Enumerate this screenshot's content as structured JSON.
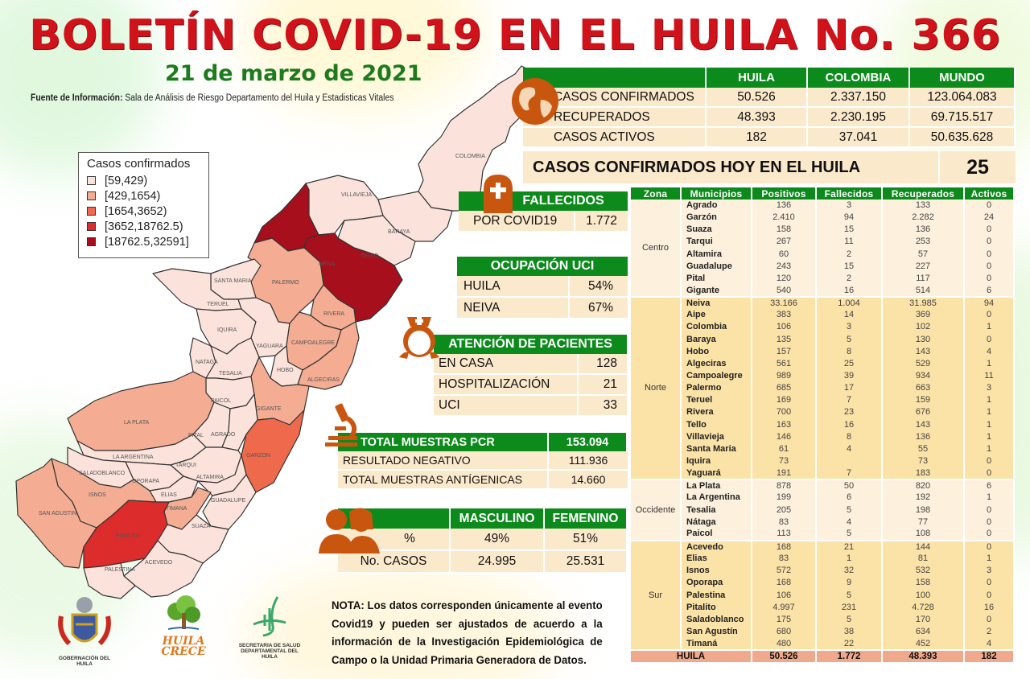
{
  "header": {
    "title": "BOLETÍN COVID-19 EN EL HUILA No. 366",
    "date": "21 de marzo de 2021",
    "source_label": "Fuente de Información:",
    "source_text": " Sala de Análisis de Riesgo Departamento del Huila y Estadisticas Vitales"
  },
  "legend": {
    "title": "Casos confirmados",
    "items": [
      {
        "label": "[59,429)",
        "color": "#fbe3dc"
      },
      {
        "label": "[429,1654)",
        "color": "#f4ad93"
      },
      {
        "label": "[1654,3652)",
        "color": "#ef6a4c"
      },
      {
        "label": "[3652,18762.5)",
        "color": "#dd2c2c"
      },
      {
        "label": "[18762.5,32591]",
        "color": "#a80f1c"
      }
    ]
  },
  "map": {
    "labels": [
      "COLOMBIA",
      "VILLAVIEJA",
      "BARAYA",
      "TELLO",
      "NEIVA",
      "PALERMO",
      "SANTA MARIA",
      "TERUEL",
      "IQUIRA",
      "YAGUARA",
      "RIVERA",
      "CAMPOALEGRE",
      "HOBO",
      "NATAGA",
      "TESALIA",
      "ALGECIRAS",
      "PAICOL",
      "GIGANTE",
      "LA PLATA",
      "PITAL",
      "AGRADO",
      "LA ARGENTINA",
      "GARZON",
      "TARQUI",
      "SALADOBLANCO",
      "OPORAPA",
      "ALTAMIRA",
      "ISNOS",
      "ELIAS",
      "TIMANA",
      "GUADALUPE",
      "SAN AGUSTIN",
      "PITALITO",
      "SUAZA",
      "ACEVEDO",
      "PALESTINA"
    ]
  },
  "summary": {
    "columns": [
      "",
      "HUILA",
      "COLOMBIA",
      "MUNDO"
    ],
    "rows": [
      {
        "label": "CASOS CONFIRMADOS",
        "huila": "50.526",
        "colombia": "2.337.150",
        "mundo": "123.064.083"
      },
      {
        "label": "RECUPERADOS",
        "huila": "48.393",
        "colombia": "2.230.195",
        "mundo": "69.715.517"
      },
      {
        "label": "CASOS ACTIVOS",
        "huila": "182",
        "colombia": "37.041",
        "mundo": "50.635.628"
      }
    ],
    "today_label": "CASOS CONFIRMADOS  HOY EN EL HUILA",
    "today_value": "25"
  },
  "fallecidos": {
    "title": "FALLECIDOS",
    "label": "POR COVID19",
    "value": "1.772"
  },
  "uci": {
    "title": "OCUPACIÓN  UCI",
    "rows": [
      {
        "label": "HUILA",
        "value": "54%"
      },
      {
        "label": "NEIVA",
        "value": "67%"
      }
    ]
  },
  "atencion": {
    "title": "ATENCIÓN DE PACIENTES",
    "rows": [
      {
        "label": "EN CASA",
        "value": "128"
      },
      {
        "label": "HOSPITALIZACIÓN",
        "value": "21"
      },
      {
        "label": "UCI",
        "value": "33"
      }
    ]
  },
  "muestras": {
    "title": "TOTAL MUESTRAS PCR",
    "total": "153.094",
    "rows": [
      {
        "label": "RESULTADO  NEGATIVO",
        "value": "111.936"
      },
      {
        "label": "TOTAL  MUESTRAS  ANTÍGENICAS",
        "value": "14.660"
      }
    ]
  },
  "sexo": {
    "columns": [
      "",
      "MASCULINO",
      "FEMENINO"
    ],
    "rows": [
      {
        "label": "%",
        "masculino": "49%",
        "femenino": "51%"
      },
      {
        "label": "No. CASOS",
        "masculino": "24.995",
        "femenino": "25.531"
      }
    ]
  },
  "nota": {
    "lead": "NOTA:",
    "text": " Los datos corresponden únicamente al evento Covid19 y pueden ser ajustados de acuerdo a la información de la Investigación Epidemiológica de Campo o la Unidad Primaria Generadora de Datos."
  },
  "municipios": {
    "columns": [
      "Zona",
      "Municipios",
      "Positivos",
      "Fallecidos",
      "Recuperados",
      "Activos"
    ],
    "zonas": [
      {
        "zona": "Centro",
        "rows": [
          [
            "Agrado",
            "136",
            "3",
            "133",
            "0"
          ],
          [
            "Garzón",
            "2.410",
            "94",
            "2.282",
            "24"
          ],
          [
            "Suaza",
            "158",
            "15",
            "136",
            "0"
          ],
          [
            "Tarqui",
            "267",
            "11",
            "253",
            "0"
          ],
          [
            "Altamira",
            "60",
            "2",
            "57",
            "0"
          ],
          [
            "Guadalupe",
            "243",
            "15",
            "227",
            "0"
          ],
          [
            "Pital",
            "120",
            "2",
            "117",
            "0"
          ],
          [
            "Gigante",
            "540",
            "16",
            "514",
            "6"
          ]
        ]
      },
      {
        "zona": "Norte",
        "rows": [
          [
            "Neiva",
            "33.166",
            "1.004",
            "31.985",
            "94"
          ],
          [
            "Aipe",
            "383",
            "14",
            "369",
            "0"
          ],
          [
            "Colombia",
            "106",
            "3",
            "102",
            "1"
          ],
          [
            "Baraya",
            "135",
            "5",
            "130",
            "0"
          ],
          [
            "Hobo",
            "157",
            "8",
            "143",
            "4"
          ],
          [
            "Algeciras",
            "561",
            "25",
            "529",
            "1"
          ],
          [
            "Campoalegre",
            "989",
            "39",
            "934",
            "11"
          ],
          [
            "Palermo",
            "685",
            "17",
            "663",
            "3"
          ],
          [
            "Teruel",
            "169",
            "7",
            "159",
            "1"
          ],
          [
            "Rivera",
            "700",
            "23",
            "676",
            "1"
          ],
          [
            "Tello",
            "163",
            "16",
            "143",
            "1"
          ],
          [
            "Villavieja",
            "146",
            "8",
            "136",
            "1"
          ],
          [
            "Santa Maria",
            "61",
            "4",
            "55",
            "1"
          ],
          [
            "Iquira",
            "73",
            "",
            "73",
            "0"
          ],
          [
            "Yaguará",
            "191",
            "7",
            "183",
            "0"
          ]
        ]
      },
      {
        "zona": "Occidente",
        "rows": [
          [
            "La Plata",
            "878",
            "50",
            "820",
            "6"
          ],
          [
            "La Argentina",
            "199",
            "6",
            "192",
            "1"
          ],
          [
            "Tesalia",
            "205",
            "5",
            "198",
            "0"
          ],
          [
            "Nátaga",
            "83",
            "4",
            "77",
            "0"
          ],
          [
            "Paicol",
            "113",
            "5",
            "108",
            "0"
          ]
        ]
      },
      {
        "zona": "Sur",
        "rows": [
          [
            "Acevedo",
            "168",
            "21",
            "144",
            "0"
          ],
          [
            "Elias",
            "83",
            "1",
            "81",
            "1"
          ],
          [
            "Isnos",
            "572",
            "32",
            "532",
            "3"
          ],
          [
            "Oporapa",
            "168",
            "9",
            "158",
            "0"
          ],
          [
            "Palestina",
            "106",
            "5",
            "100",
            "0"
          ],
          [
            "Pitalito",
            "4.997",
            "231",
            "4.728",
            "16"
          ],
          [
            "Saladoblanco",
            "175",
            "5",
            "170",
            "0"
          ],
          [
            "San Agustín",
            "680",
            "38",
            "634",
            "2"
          ],
          [
            "Timaná",
            "480",
            "22",
            "452",
            "4"
          ]
        ]
      }
    ],
    "total": {
      "label": "HUILA",
      "positivos": "50.526",
      "fallecidos": "1.772",
      "recuperados": "48.393",
      "activos": "182"
    }
  },
  "logos": {
    "gobernacion": "GOBERNACIÓN DEL HUILA",
    "huila_crece_1": "HUILA",
    "huila_crece_2": "CRECE",
    "secretaria_1": "SECRETARIA DE SALUD",
    "secretaria_2": "DEPARTAMENTAL DEL HUILA"
  },
  "colors": {
    "title_red": "#d0121b",
    "date_green": "#1d7a1d",
    "header_green": "#0d8a1c",
    "cream": "#fbe9cc",
    "icon_orange": "#c8560f",
    "total_row": "#f0a98c"
  }
}
